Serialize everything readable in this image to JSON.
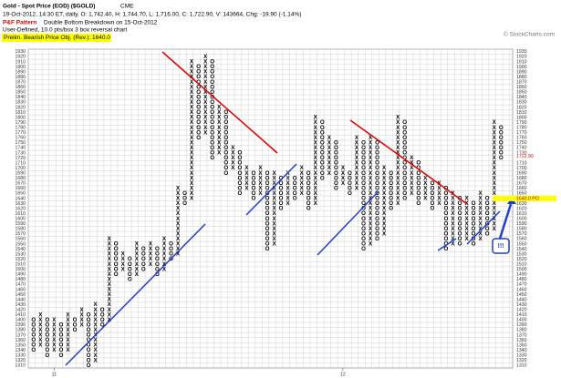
{
  "chart_data": {
    "type": "pnf",
    "title": "Gold - Spot Price (EOD) ($GOLD)",
    "exchange": "CME",
    "subtitle": "19-Oct-2012, 14:30 ET, daily, O: 1,742.40, H: 1,744.70, L: 1,716.00, C: 1,722.90, V: 143664, Chg: -19.90 (-1.14%)",
    "pattern_label": "P&F Pattern",
    "pattern": "Double Bottom Breakdown on 15-Oct-2012",
    "settings": "User-Defined, 10.0 pts/box 3 box reversal chart",
    "objective": "Prelim. Bearish Price Obj. (Rev.): 1640.0",
    "credit": "© StockCharts.com",
    "annotation": "!!!",
    "box_size": 10,
    "ylim": [
      1305,
      1935
    ],
    "yticks": [
      1310,
      1320,
      1330,
      1340,
      1350,
      1360,
      1370,
      1380,
      1390,
      1400,
      1410,
      1420,
      1430,
      1440,
      1450,
      1460,
      1470,
      1480,
      1490,
      1500,
      1510,
      1520,
      1530,
      1540,
      1550,
      1560,
      1570,
      1580,
      1590,
      1600,
      1610,
      1620,
      1630,
      1640,
      1650,
      1660,
      1670,
      1680,
      1690,
      1700,
      1710,
      1720,
      1730,
      1740,
      1750,
      1760,
      1770,
      1780,
      1790,
      1800,
      1810,
      1820,
      1830,
      1840,
      1850,
      1860,
      1870,
      1880,
      1890,
      1900,
      1910,
      1920,
      1930
    ],
    "last_price": {
      "value": 1722.9,
      "label": "1722.90"
    },
    "price_objective": {
      "value": 1640,
      "label": "1640.0 PO"
    },
    "x_labels": [
      {
        "column": 3,
        "label": "11"
      },
      {
        "column": 45,
        "label": "12"
      }
    ],
    "colors": {
      "X": "#000000",
      "O": "#000000",
      "grid": "#c8c8c8",
      "objective": "#ffff00"
    },
    "columns": [
      {
        "type": "O",
        "low": 1340,
        "high": 1400
      },
      {
        "type": "X",
        "low": 1350,
        "high": 1410
      },
      {
        "type": "O",
        "low": 1330,
        "high": 1400
      },
      {
        "type": "X",
        "low": 1340,
        "high": 1400
      },
      {
        "type": "O",
        "low": 1330,
        "high": 1390
      },
      {
        "type": "X",
        "low": 1340,
        "high": 1410
      },
      {
        "type": "O",
        "low": 1380,
        "high": 1400
      },
      {
        "type": "X",
        "low": 1390,
        "high": 1420
      },
      {
        "type": "O",
        "low": 1310,
        "high": 1410
      },
      {
        "type": "X",
        "low": 1320,
        "high": 1430
      },
      {
        "type": "O",
        "low": 1390,
        "high": 1420
      },
      {
        "type": "X",
        "low": 1400,
        "high": 1560
      },
      {
        "type": "O",
        "low": 1490,
        "high": 1550
      },
      {
        "type": "X",
        "low": 1500,
        "high": 1530
      },
      {
        "type": "O",
        "low": 1480,
        "high": 1520
      },
      {
        "type": "X",
        "low": 1490,
        "high": 1550
      },
      {
        "type": "O",
        "low": 1500,
        "high": 1540
      },
      {
        "type": "X",
        "low": 1510,
        "high": 1550
      },
      {
        "type": "O",
        "low": 1490,
        "high": 1540
      },
      {
        "type": "X",
        "low": 1500,
        "high": 1560
      },
      {
        "type": "O",
        "low": 1520,
        "high": 1550
      },
      {
        "type": "X",
        "low": 1530,
        "high": 1660
      },
      {
        "type": "O",
        "low": 1630,
        "high": 1650
      },
      {
        "type": "X",
        "low": 1640,
        "high": 1910
      },
      {
        "type": "O",
        "low": 1760,
        "high": 1900
      },
      {
        "type": "X",
        "low": 1770,
        "high": 1920
      },
      {
        "type": "O",
        "low": 1720,
        "high": 1910
      },
      {
        "type": "X",
        "low": 1730,
        "high": 1820
      },
      {
        "type": "O",
        "low": 1690,
        "high": 1810
      },
      {
        "type": "X",
        "low": 1700,
        "high": 1740
      },
      {
        "type": "O",
        "low": 1650,
        "high": 1730
      },
      {
        "type": "X",
        "low": 1660,
        "high": 1700
      },
      {
        "type": "O",
        "low": 1640,
        "high": 1690
      },
      {
        "type": "X",
        "low": 1650,
        "high": 1700
      },
      {
        "type": "O",
        "low": 1540,
        "high": 1690
      },
      {
        "type": "X",
        "low": 1550,
        "high": 1690
      },
      {
        "type": "O",
        "low": 1620,
        "high": 1680
      },
      {
        "type": "X",
        "low": 1630,
        "high": 1690
      },
      {
        "type": "O",
        "low": 1640,
        "high": 1680
      },
      {
        "type": "X",
        "low": 1650,
        "high": 1700
      },
      {
        "type": "O",
        "low": 1620,
        "high": 1690
      },
      {
        "type": "X",
        "low": 1630,
        "high": 1800
      },
      {
        "type": "O",
        "low": 1680,
        "high": 1790
      },
      {
        "type": "X",
        "low": 1690,
        "high": 1760
      },
      {
        "type": "O",
        "low": 1660,
        "high": 1750
      },
      {
        "type": "X",
        "low": 1670,
        "high": 1700
      },
      {
        "type": "O",
        "low": 1650,
        "high": 1690
      },
      {
        "type": "X",
        "low": 1660,
        "high": 1760
      },
      {
        "type": "O",
        "low": 1540,
        "high": 1750
      },
      {
        "type": "X",
        "low": 1550,
        "high": 1760
      },
      {
        "type": "O",
        "low": 1560,
        "high": 1750
      },
      {
        "type": "X",
        "low": 1570,
        "high": 1700
      },
      {
        "type": "O",
        "low": 1620,
        "high": 1690
      },
      {
        "type": "X",
        "low": 1630,
        "high": 1800
      },
      {
        "type": "O",
        "low": 1640,
        "high": 1790
      },
      {
        "type": "X",
        "low": 1650,
        "high": 1720
      },
      {
        "type": "O",
        "low": 1630,
        "high": 1710
      },
      {
        "type": "X",
        "low": 1640,
        "high": 1680
      },
      {
        "type": "O",
        "low": 1620,
        "high": 1670
      },
      {
        "type": "X",
        "low": 1630,
        "high": 1670
      },
      {
        "type": "O",
        "low": 1540,
        "high": 1660
      },
      {
        "type": "X",
        "low": 1550,
        "high": 1650
      },
      {
        "type": "O",
        "low": 1550,
        "high": 1640
      },
      {
        "type": "X",
        "low": 1560,
        "high": 1640
      },
      {
        "type": "O",
        "low": 1550,
        "high": 1630
      },
      {
        "type": "X",
        "low": 1560,
        "high": 1650
      },
      {
        "type": "O",
        "low": 1570,
        "high": 1640
      },
      {
        "type": "X",
        "low": 1580,
        "high": 1790
      },
      {
        "type": "O",
        "low": 1720,
        "high": 1780
      }
    ]
  }
}
